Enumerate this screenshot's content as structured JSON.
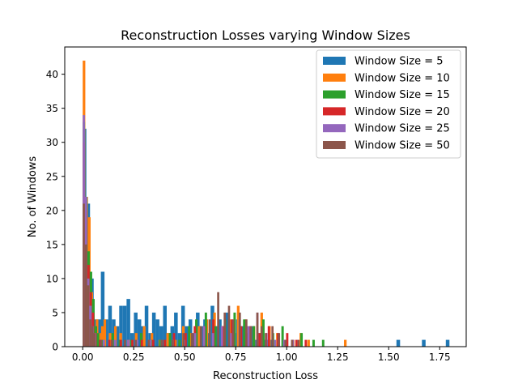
{
  "chart_data": {
    "type": "bar",
    "subtype": "overlaid histogram",
    "title": "Reconstruction Losses varying Window Sizes",
    "xlabel": "Reconstruction Loss",
    "ylabel": "No. of Windows",
    "xlim": [
      -0.088,
      1.88
    ],
    "ylim": [
      0,
      44
    ],
    "x_ticks": [
      0.0,
      0.25,
      0.5,
      0.75,
      1.0,
      1.25,
      1.5,
      1.75
    ],
    "x_tick_labels": [
      "0.00",
      "0.25",
      "0.50",
      "0.75",
      "1.00",
      "1.25",
      "1.50",
      "1.75"
    ],
    "y_ticks": [
      0,
      5,
      10,
      15,
      20,
      25,
      30,
      35,
      40
    ],
    "y_tick_labels": [
      "0",
      "5",
      "10",
      "15",
      "20",
      "25",
      "30",
      "35",
      "40"
    ],
    "grid": false,
    "legend_position": "top-right",
    "series": [
      {
        "name": "Window Size = 5",
        "color": "#1f77b4",
        "bin_width": 0.0179,
        "bins": [
          [
            0.0,
            32
          ],
          [
            0.018,
            21
          ],
          [
            0.036,
            10
          ],
          [
            0.054,
            4
          ],
          [
            0.072,
            4
          ],
          [
            0.089,
            11
          ],
          [
            0.107,
            4
          ],
          [
            0.125,
            6
          ],
          [
            0.143,
            4
          ],
          [
            0.161,
            3
          ],
          [
            0.179,
            6
          ],
          [
            0.197,
            6
          ],
          [
            0.215,
            7
          ],
          [
            0.233,
            2
          ],
          [
            0.251,
            5
          ],
          [
            0.269,
            4
          ],
          [
            0.286,
            3
          ],
          [
            0.304,
            6
          ],
          [
            0.322,
            2
          ],
          [
            0.34,
            5
          ],
          [
            0.358,
            4
          ],
          [
            0.376,
            3
          ],
          [
            0.394,
            6
          ],
          [
            0.412,
            2
          ],
          [
            0.43,
            3
          ],
          [
            0.448,
            5
          ],
          [
            0.466,
            2
          ],
          [
            0.483,
            6
          ],
          [
            0.501,
            3
          ],
          [
            0.519,
            4
          ],
          [
            0.537,
            2
          ],
          [
            0.555,
            5
          ],
          [
            0.573,
            3
          ],
          [
            0.591,
            4
          ],
          [
            0.609,
            2
          ],
          [
            0.627,
            6
          ],
          [
            0.645,
            3
          ],
          [
            0.663,
            4
          ],
          [
            0.681,
            2
          ],
          [
            0.698,
            5
          ],
          [
            0.716,
            3
          ],
          [
            0.734,
            2
          ],
          [
            0.752,
            4
          ],
          [
            0.77,
            3
          ],
          [
            0.788,
            2
          ],
          [
            0.806,
            2
          ],
          [
            0.824,
            3
          ],
          [
            0.842,
            1
          ],
          [
            0.86,
            2
          ],
          [
            0.878,
            1
          ],
          [
            0.895,
            1
          ],
          [
            0.913,
            1
          ],
          [
            1.538,
            1
          ],
          [
            1.663,
            1
          ],
          [
            1.78,
            1
          ]
        ]
      },
      {
        "name": "Window Size = 10",
        "color": "#ff7f0e",
        "bin_width": 0.0128,
        "bins": [
          [
            0.0,
            42
          ],
          [
            0.013,
            22
          ],
          [
            0.026,
            19
          ],
          [
            0.038,
            8
          ],
          [
            0.051,
            3
          ],
          [
            0.064,
            4
          ],
          [
            0.077,
            2
          ],
          [
            0.09,
            3
          ],
          [
            0.102,
            4
          ],
          [
            0.128,
            2
          ],
          [
            0.154,
            3
          ],
          [
            0.18,
            2
          ],
          [
            0.218,
            1
          ],
          [
            0.256,
            2
          ],
          [
            0.295,
            3
          ],
          [
            0.333,
            2
          ],
          [
            0.372,
            1
          ],
          [
            0.41,
            2
          ],
          [
            0.448,
            1
          ],
          [
            0.487,
            3
          ],
          [
            0.525,
            2
          ],
          [
            0.564,
            3
          ],
          [
            0.602,
            4
          ],
          [
            0.64,
            5
          ],
          [
            0.679,
            3
          ],
          [
            0.717,
            4
          ],
          [
            0.756,
            6
          ],
          [
            0.794,
            4
          ],
          [
            0.833,
            3
          ],
          [
            0.871,
            5
          ],
          [
            0.909,
            3
          ],
          [
            0.948,
            2
          ],
          [
            0.986,
            1
          ],
          [
            1.025,
            1
          ],
          [
            1.063,
            2
          ],
          [
            1.101,
            1
          ],
          [
            1.281,
            1
          ]
        ]
      },
      {
        "name": "Window Size = 15",
        "color": "#2ca02c",
        "bin_width": 0.0117,
        "bins": [
          [
            0.0,
            33
          ],
          [
            0.012,
            22
          ],
          [
            0.023,
            14
          ],
          [
            0.035,
            11
          ],
          [
            0.047,
            7
          ],
          [
            0.059,
            3
          ],
          [
            0.07,
            2
          ],
          [
            0.094,
            1
          ],
          [
            0.141,
            2
          ],
          [
            0.176,
            1
          ],
          [
            0.234,
            1
          ],
          [
            0.281,
            2
          ],
          [
            0.328,
            1
          ],
          [
            0.375,
            1
          ],
          [
            0.422,
            2
          ],
          [
            0.469,
            1
          ],
          [
            0.516,
            3
          ],
          [
            0.551,
            4
          ],
          [
            0.598,
            5
          ],
          [
            0.645,
            3
          ],
          [
            0.692,
            4
          ],
          [
            0.739,
            5
          ],
          [
            0.786,
            4
          ],
          [
            0.833,
            3
          ],
          [
            0.88,
            4
          ],
          [
            0.927,
            2
          ],
          [
            0.974,
            3
          ],
          [
            1.021,
            1
          ],
          [
            1.067,
            2
          ],
          [
            1.126,
            1
          ],
          [
            1.173,
            1
          ]
        ]
      },
      {
        "name": "Window Size = 20",
        "color": "#d62728",
        "bin_width": 0.0113,
        "bins": [
          [
            0.0,
            30
          ],
          [
            0.011,
            20
          ],
          [
            0.023,
            12
          ],
          [
            0.034,
            8
          ],
          [
            0.045,
            5
          ],
          [
            0.057,
            2
          ],
          [
            0.08,
            1
          ],
          [
            0.125,
            1
          ],
          [
            0.181,
            1
          ],
          [
            0.238,
            1
          ],
          [
            0.284,
            1
          ],
          [
            0.34,
            1
          ],
          [
            0.397,
            1
          ],
          [
            0.442,
            2
          ],
          [
            0.499,
            2
          ],
          [
            0.544,
            3
          ],
          [
            0.59,
            3
          ],
          [
            0.635,
            4
          ],
          [
            0.68,
            3
          ],
          [
            0.726,
            4
          ],
          [
            0.771,
            3
          ],
          [
            0.816,
            3
          ],
          [
            0.861,
            2
          ],
          [
            0.907,
            3
          ],
          [
            0.952,
            2
          ],
          [
            0.997,
            2
          ],
          [
            1.042,
            1
          ],
          [
            1.088,
            1
          ]
        ]
      },
      {
        "name": "Window Size = 25",
        "color": "#9467bd",
        "bin_width": 0.0109,
        "bins": [
          [
            0.0,
            34
          ],
          [
            0.011,
            22
          ],
          [
            0.022,
            10
          ],
          [
            0.033,
            6
          ],
          [
            0.044,
            3
          ],
          [
            0.055,
            2
          ],
          [
            0.098,
            1
          ],
          [
            0.153,
            1
          ],
          [
            0.218,
            1
          ],
          [
            0.262,
            1
          ],
          [
            0.327,
            1
          ],
          [
            0.382,
            1
          ],
          [
            0.436,
            1
          ],
          [
            0.491,
            1
          ],
          [
            0.546,
            2
          ],
          [
            0.589,
            3
          ],
          [
            0.633,
            2
          ],
          [
            0.677,
            3
          ],
          [
            0.72,
            2
          ],
          [
            0.764,
            4
          ],
          [
            0.807,
            3
          ],
          [
            0.851,
            5
          ],
          [
            0.895,
            2
          ],
          [
            0.938,
            1
          ],
          [
            0.982,
            1
          ],
          [
            1.025,
            1
          ]
        ]
      },
      {
        "name": "Window Size = 50",
        "color": "#8c564b",
        "bin_width": 0.0106,
        "bins": [
          [
            0.0,
            21
          ],
          [
            0.011,
            15
          ],
          [
            0.021,
            9
          ],
          [
            0.032,
            4
          ],
          [
            0.043,
            3
          ],
          [
            0.053,
            2
          ],
          [
            0.085,
            1
          ],
          [
            0.138,
            1
          ],
          [
            0.202,
            1
          ],
          [
            0.255,
            1
          ],
          [
            0.319,
            1
          ],
          [
            0.383,
            1
          ],
          [
            0.436,
            1
          ],
          [
            0.489,
            2
          ],
          [
            0.531,
            2
          ],
          [
            0.574,
            3
          ],
          [
            0.617,
            4
          ],
          [
            0.659,
            8
          ],
          [
            0.691,
            5
          ],
          [
            0.712,
            6
          ],
          [
            0.733,
            4
          ],
          [
            0.765,
            5
          ],
          [
            0.797,
            4
          ],
          [
            0.819,
            3
          ],
          [
            0.851,
            5
          ],
          [
            0.872,
            3
          ],
          [
            0.893,
            2
          ],
          [
            0.925,
            3
          ],
          [
            0.957,
            2
          ],
          [
            0.989,
            1
          ],
          [
            1.021,
            1
          ],
          [
            1.053,
            1
          ]
        ]
      }
    ]
  }
}
